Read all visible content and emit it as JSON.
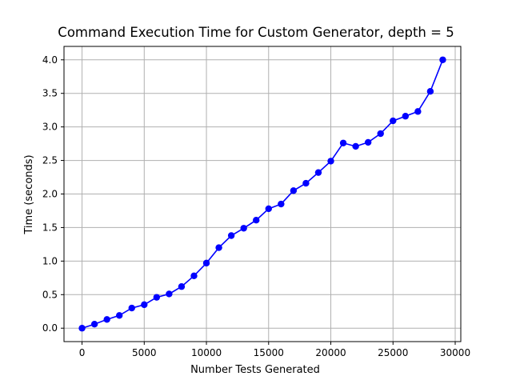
{
  "chart_data": {
    "type": "line",
    "title": "Command Execution Time for Custom Generator, depth = 5",
    "xlabel": "Number Tests Generated",
    "ylabel": "Time (seconds)",
    "xlim": [
      -1450,
      30450
    ],
    "ylim": [
      -0.2,
      4.2
    ],
    "xticks": [
      0,
      5000,
      10000,
      15000,
      20000,
      25000,
      30000
    ],
    "xtick_labels": [
      "0",
      "5000",
      "10000",
      "15000",
      "20000",
      "25000",
      "30000"
    ],
    "yticks": [
      0.0,
      0.5,
      1.0,
      1.5,
      2.0,
      2.5,
      3.0,
      3.5,
      4.0
    ],
    "ytick_labels": [
      "0.0",
      "0.5",
      "1.0",
      "1.5",
      "2.0",
      "2.5",
      "3.0",
      "3.5",
      "4.0"
    ],
    "grid": true,
    "series": [
      {
        "color": "#0000ff",
        "marker": "circle",
        "x": [
          0,
          1000,
          2000,
          3000,
          4000,
          5000,
          6000,
          7000,
          8000,
          9000,
          10000,
          11000,
          12000,
          13000,
          14000,
          15000,
          16000,
          17000,
          18000,
          19000,
          20000,
          21000,
          22000,
          23000,
          24000,
          25000,
          26000,
          27000,
          28000,
          29000
        ],
        "y": [
          0.0,
          0.06,
          0.13,
          0.19,
          0.3,
          0.35,
          0.46,
          0.51,
          0.62,
          0.78,
          0.97,
          1.2,
          1.38,
          1.49,
          1.61,
          1.78,
          1.85,
          2.05,
          2.16,
          2.32,
          2.49,
          2.76,
          2.71,
          2.77,
          2.9,
          3.09,
          3.16,
          3.23,
          3.53,
          4.0
        ]
      }
    ]
  }
}
